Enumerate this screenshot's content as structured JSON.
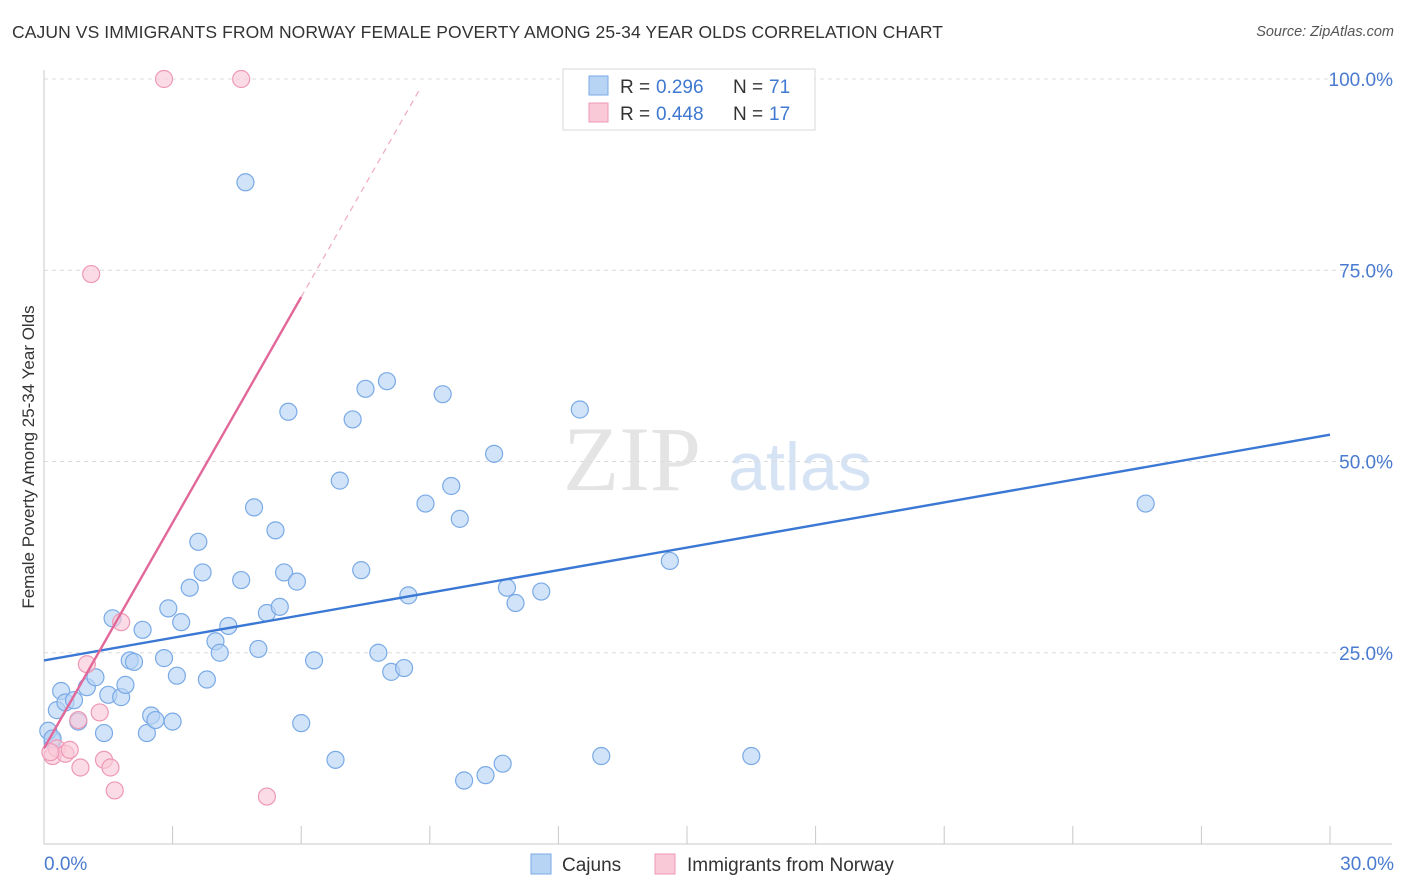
{
  "title": "CAJUN VS IMMIGRANTS FROM NORWAY FEMALE POVERTY AMONG 25-34 YEAR OLDS CORRELATION CHART",
  "source": "Source: ZipAtlas.com",
  "watermark": {
    "zip": "ZIP",
    "atlas": "atlas"
  },
  "colors": {
    "cajun_fill": "#b8d4f5",
    "cajun_stroke": "#7aaae6",
    "cajun_line": "#3a78d4",
    "norway_fill": "#f9c9d8",
    "norway_stroke": "#ee98b4",
    "norway_line": "#e2689a",
    "tick_label": "#4a7bd0",
    "grid": "#dcdcdc"
  },
  "legend": {
    "r_label": "R =",
    "n_label": "N =",
    "items": [
      {
        "r": "0.296",
        "n": "71"
      },
      {
        "r": "0.448",
        "n": "17"
      }
    ]
  },
  "bottom_legend": [
    "Cajuns",
    "Immigrants from Norway"
  ],
  "chart_data": {
    "type": "scatter",
    "title": "CAJUN VS IMMIGRANTS FROM NORWAY FEMALE POVERTY AMONG 25-34 YEAR OLDS CORRELATION CHART",
    "xlabel": "",
    "ylabel": "Female Poverty Among 25-34 Year Olds",
    "xlim": [
      0,
      30
    ],
    "ylim": [
      0,
      100
    ],
    "x_tick_labels": [
      "0.0%",
      "30.0%"
    ],
    "y_ticks": [
      25,
      50,
      75,
      100
    ],
    "y_tick_labels": [
      "25.0%",
      "50.0%",
      "75.0%",
      "100.0%"
    ],
    "series": [
      {
        "name": "Cajuns",
        "r": 0.296,
        "n": 71,
        "trend": {
          "x": [
            0,
            30
          ],
          "y": [
            24.0,
            53.5
          ]
        },
        "points": [
          [
            0.2,
            13.5
          ],
          [
            0.3,
            17.5
          ],
          [
            0.4,
            20.0
          ],
          [
            0.5,
            18.5
          ],
          [
            0.7,
            18.8
          ],
          [
            0.8,
            16.0
          ],
          [
            1.0,
            20.5
          ],
          [
            1.2,
            21.8
          ],
          [
            1.4,
            14.5
          ],
          [
            1.5,
            19.5
          ],
          [
            1.6,
            29.5
          ],
          [
            1.8,
            19.2
          ],
          [
            1.9,
            20.8
          ],
          [
            2.0,
            24.0
          ],
          [
            2.1,
            23.8
          ],
          [
            2.3,
            28.0
          ],
          [
            2.4,
            14.5
          ],
          [
            2.5,
            16.8
          ],
          [
            2.6,
            16.2
          ],
          [
            2.8,
            24.3
          ],
          [
            2.9,
            30.8
          ],
          [
            3.0,
            16.0
          ],
          [
            3.1,
            22.0
          ],
          [
            3.2,
            29.0
          ],
          [
            3.4,
            33.5
          ],
          [
            3.6,
            39.5
          ],
          [
            3.7,
            35.5
          ],
          [
            3.8,
            21.5
          ],
          [
            4.0,
            26.5
          ],
          [
            4.1,
            25.0
          ],
          [
            4.3,
            28.5
          ],
          [
            4.6,
            34.5
          ],
          [
            4.7,
            86.5
          ],
          [
            4.9,
            44.0
          ],
          [
            5.0,
            25.5
          ],
          [
            5.2,
            30.2
          ],
          [
            5.4,
            41.0
          ],
          [
            5.5,
            31.0
          ],
          [
            5.6,
            35.5
          ],
          [
            5.7,
            56.5
          ],
          [
            5.9,
            34.3
          ],
          [
            6.0,
            15.8
          ],
          [
            6.3,
            24.0
          ],
          [
            6.8,
            11.0
          ],
          [
            6.9,
            47.5
          ],
          [
            7.2,
            55.5
          ],
          [
            7.4,
            35.8
          ],
          [
            7.5,
            59.5
          ],
          [
            7.8,
            25.0
          ],
          [
            8.0,
            60.5
          ],
          [
            8.1,
            22.5
          ],
          [
            8.4,
            23.0
          ],
          [
            8.5,
            32.5
          ],
          [
            8.9,
            44.5
          ],
          [
            9.3,
            58.8
          ],
          [
            9.5,
            46.8
          ],
          [
            9.7,
            42.5
          ],
          [
            9.8,
            8.3
          ],
          [
            10.3,
            9.0
          ],
          [
            10.5,
            51.0
          ],
          [
            10.7,
            10.5
          ],
          [
            10.8,
            33.5
          ],
          [
            11.0,
            31.5
          ],
          [
            11.6,
            33.0
          ],
          [
            12.5,
            56.8
          ],
          [
            13.0,
            11.5
          ],
          [
            14.6,
            37.0
          ],
          [
            16.5,
            11.5
          ],
          [
            25.7,
            44.5
          ],
          [
            0.1,
            14.8
          ],
          [
            0.2,
            13.8
          ]
        ]
      },
      {
        "name": "Immigrants from Norway",
        "r": 0.448,
        "n": 17,
        "trend": {
          "x": [
            0,
            6.0
          ],
          "y": [
            12.5,
            71.5
          ]
        },
        "trend_dashed": {
          "x": [
            6.0,
            8.8
          ],
          "y": [
            71.5,
            99.0
          ]
        },
        "points": [
          [
            0.2,
            11.5
          ],
          [
            0.3,
            12.5
          ],
          [
            0.5,
            11.8
          ],
          [
            0.6,
            12.3
          ],
          [
            0.8,
            16.2
          ],
          [
            0.85,
            10.0
          ],
          [
            1.0,
            23.5
          ],
          [
            1.1,
            74.5
          ],
          [
            1.3,
            17.2
          ],
          [
            1.4,
            11.0
          ],
          [
            1.55,
            10.0
          ],
          [
            1.65,
            7.0
          ],
          [
            1.8,
            29.0
          ],
          [
            2.8,
            100.0
          ],
          [
            4.6,
            100.0
          ],
          [
            5.2,
            6.2
          ],
          [
            0.15,
            12.0
          ]
        ]
      }
    ]
  }
}
